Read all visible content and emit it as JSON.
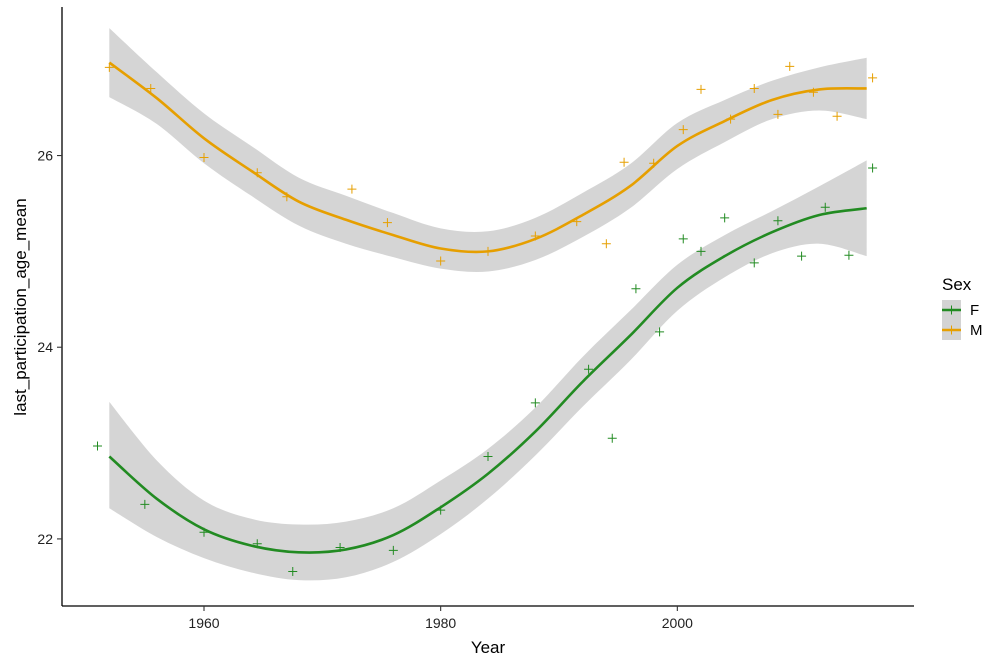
{
  "chart_data": {
    "type": "scatter",
    "title": "",
    "xlabel": "Year",
    "ylabel": "last_participation_age_mean",
    "xlim": [
      1948,
      2020
    ],
    "ylim": [
      21.3,
      27.55
    ],
    "xticks": [
      1960,
      1980,
      2000
    ],
    "yticks": [
      22,
      24,
      26
    ],
    "grid": false,
    "legend": {
      "title": "Sex",
      "position": "right"
    },
    "series": [
      {
        "name": "F",
        "color": "#228B22",
        "points": [
          [
            1951,
            22.97
          ],
          [
            1955,
            22.36
          ],
          [
            1960,
            22.07
          ],
          [
            1964.5,
            21.95
          ],
          [
            1967.5,
            21.66
          ],
          [
            1971.5,
            21.91
          ],
          [
            1976,
            21.88
          ],
          [
            1980,
            22.3
          ],
          [
            1984,
            22.86
          ],
          [
            1988,
            23.42
          ],
          [
            1992.5,
            23.77
          ],
          [
            1994.5,
            23.05
          ],
          [
            1996.5,
            24.61
          ],
          [
            1998.5,
            24.16
          ],
          [
            2000.5,
            25.13
          ],
          [
            2002,
            25.0
          ],
          [
            2004,
            25.35
          ],
          [
            2006.5,
            24.88
          ],
          [
            2008.5,
            25.32
          ],
          [
            2010.5,
            24.95
          ],
          [
            2012.5,
            25.46
          ],
          [
            2014.5,
            24.96
          ],
          [
            2016.5,
            25.87
          ]
        ],
        "smooth": [
          [
            1952,
            22.86
          ],
          [
            1956,
            22.42
          ],
          [
            1960,
            22.1
          ],
          [
            1964,
            21.93
          ],
          [
            1968,
            21.86
          ],
          [
            1972,
            21.89
          ],
          [
            1976,
            22.04
          ],
          [
            1980,
            22.33
          ],
          [
            1984,
            22.68
          ],
          [
            1988,
            23.12
          ],
          [
            1992,
            23.64
          ],
          [
            1996,
            24.12
          ],
          [
            2000,
            24.62
          ],
          [
            2004,
            24.95
          ],
          [
            2008,
            25.2
          ],
          [
            2012,
            25.38
          ],
          [
            2016,
            25.45
          ]
        ],
        "band_lower": [
          [
            1952,
            22.32
          ],
          [
            1956,
            22.02
          ],
          [
            1960,
            21.8
          ],
          [
            1964,
            21.65
          ],
          [
            1968,
            21.57
          ],
          [
            1972,
            21.6
          ],
          [
            1976,
            21.76
          ],
          [
            1980,
            22.05
          ],
          [
            1984,
            22.42
          ],
          [
            1988,
            22.87
          ],
          [
            1992,
            23.38
          ],
          [
            1996,
            23.86
          ],
          [
            2000,
            24.38
          ],
          [
            2004,
            24.73
          ],
          [
            2008,
            24.98
          ],
          [
            2012,
            25.08
          ],
          [
            2016,
            24.95
          ]
        ],
        "band_upper": [
          [
            1952,
            23.43
          ],
          [
            1956,
            22.82
          ],
          [
            1960,
            22.4
          ],
          [
            1964,
            22.21
          ],
          [
            1968,
            22.15
          ],
          [
            1972,
            22.18
          ],
          [
            1976,
            22.32
          ],
          [
            1980,
            22.61
          ],
          [
            1984,
            22.94
          ],
          [
            1988,
            23.37
          ],
          [
            1992,
            23.9
          ],
          [
            1996,
            24.38
          ],
          [
            2000,
            24.86
          ],
          [
            2004,
            25.17
          ],
          [
            2008,
            25.42
          ],
          [
            2012,
            25.68
          ],
          [
            2016,
            25.95
          ]
        ]
      },
      {
        "name": "M",
        "color": "#E69F00",
        "points": [
          [
            1952,
            26.92
          ],
          [
            1955.5,
            26.7
          ],
          [
            1960,
            25.98
          ],
          [
            1964.5,
            25.82
          ],
          [
            1967,
            25.57
          ],
          [
            1972.5,
            25.65
          ],
          [
            1975.5,
            25.3
          ],
          [
            1980,
            24.9
          ],
          [
            1984,
            25.0
          ],
          [
            1988,
            25.16
          ],
          [
            1991.5,
            25.31
          ],
          [
            1994,
            25.08
          ],
          [
            1995.5,
            25.93
          ],
          [
            1998,
            25.92
          ],
          [
            2000.5,
            26.27
          ],
          [
            2002,
            26.69
          ],
          [
            2004.5,
            26.38
          ],
          [
            2006.5,
            26.7
          ],
          [
            2008.5,
            26.43
          ],
          [
            2009.5,
            26.93
          ],
          [
            2011.5,
            26.66
          ],
          [
            2013.5,
            26.41
          ],
          [
            2016.5,
            26.81
          ]
        ],
        "smooth": [
          [
            1952,
            26.97
          ],
          [
            1956,
            26.6
          ],
          [
            1960,
            26.18
          ],
          [
            1964,
            25.84
          ],
          [
            1968,
            25.52
          ],
          [
            1972,
            25.33
          ],
          [
            1976,
            25.17
          ],
          [
            1980,
            25.03
          ],
          [
            1984,
            25.0
          ],
          [
            1988,
            25.13
          ],
          [
            1992,
            25.38
          ],
          [
            1996,
            25.68
          ],
          [
            2000,
            26.1
          ],
          [
            2004,
            26.36
          ],
          [
            2008,
            26.58
          ],
          [
            2012,
            26.69
          ],
          [
            2016,
            26.7
          ]
        ],
        "band_lower": [
          [
            1952,
            26.61
          ],
          [
            1956,
            26.33
          ],
          [
            1960,
            25.92
          ],
          [
            1964,
            25.58
          ],
          [
            1968,
            25.27
          ],
          [
            1972,
            25.08
          ],
          [
            1976,
            24.94
          ],
          [
            1980,
            24.82
          ],
          [
            1984,
            24.79
          ],
          [
            1988,
            24.91
          ],
          [
            1992,
            25.15
          ],
          [
            1996,
            25.45
          ],
          [
            2000,
            25.86
          ],
          [
            2004,
            26.14
          ],
          [
            2008,
            26.38
          ],
          [
            2012,
            26.47
          ],
          [
            2016,
            26.38
          ]
        ],
        "band_upper": [
          [
            1952,
            27.33
          ],
          [
            1956,
            26.87
          ],
          [
            1960,
            26.44
          ],
          [
            1964,
            26.1
          ],
          [
            1968,
            25.77
          ],
          [
            1972,
            25.58
          ],
          [
            1976,
            25.4
          ],
          [
            1980,
            25.24
          ],
          [
            1984,
            25.21
          ],
          [
            1988,
            25.35
          ],
          [
            1992,
            25.61
          ],
          [
            1996,
            25.91
          ],
          [
            2000,
            26.34
          ],
          [
            2004,
            26.58
          ],
          [
            2008,
            26.78
          ],
          [
            2012,
            26.92
          ],
          [
            2016,
            27.02
          ]
        ]
      }
    ]
  }
}
